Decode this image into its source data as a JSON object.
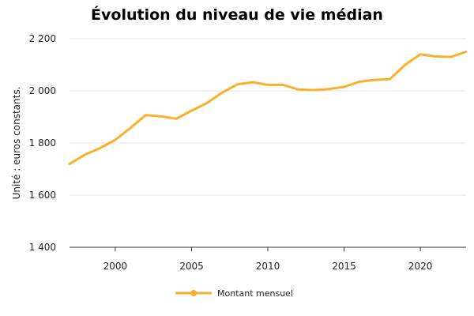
{
  "chart_data": {
    "type": "line",
    "title": "Évolution du niveau de vie médian",
    "xlabel": "",
    "ylabel": "Unité : euros constants.",
    "xlim": [
      1997,
      2023
    ],
    "ylim": [
      1400,
      2200
    ],
    "x_ticks": [
      2000,
      2005,
      2010,
      2015,
      2020
    ],
    "x_tick_labels": [
      "2000",
      "2005",
      "2010",
      "2015",
      "2020"
    ],
    "y_ticks": [
      1400,
      1600,
      1800,
      2000,
      2200
    ],
    "y_tick_labels": [
      "1 400",
      "1 600",
      "1 800",
      "2 000",
      "2 200"
    ],
    "grid": true,
    "legend_position": "bottom-center",
    "series": [
      {
        "name": "Montant mensuel",
        "color": "#F9B02A",
        "x": [
          1997,
          1998,
          1999,
          2000,
          2001,
          2002,
          2003,
          2004,
          2005,
          2006,
          2007,
          2008,
          2009,
          2010,
          2011,
          2012,
          2013,
          2014,
          2015,
          2016,
          2017,
          2018,
          2019,
          2020,
          2021,
          2022,
          2023
        ],
        "values": [
          1720,
          1755,
          1780,
          1812,
          1858,
          1907,
          1902,
          1893,
          1924,
          1953,
          1993,
          2025,
          2033,
          2023,
          2023,
          2005,
          2003,
          2007,
          2015,
          2035,
          2042,
          2045,
          2100,
          2140,
          2132,
          2130,
          2150
        ]
      }
    ]
  }
}
